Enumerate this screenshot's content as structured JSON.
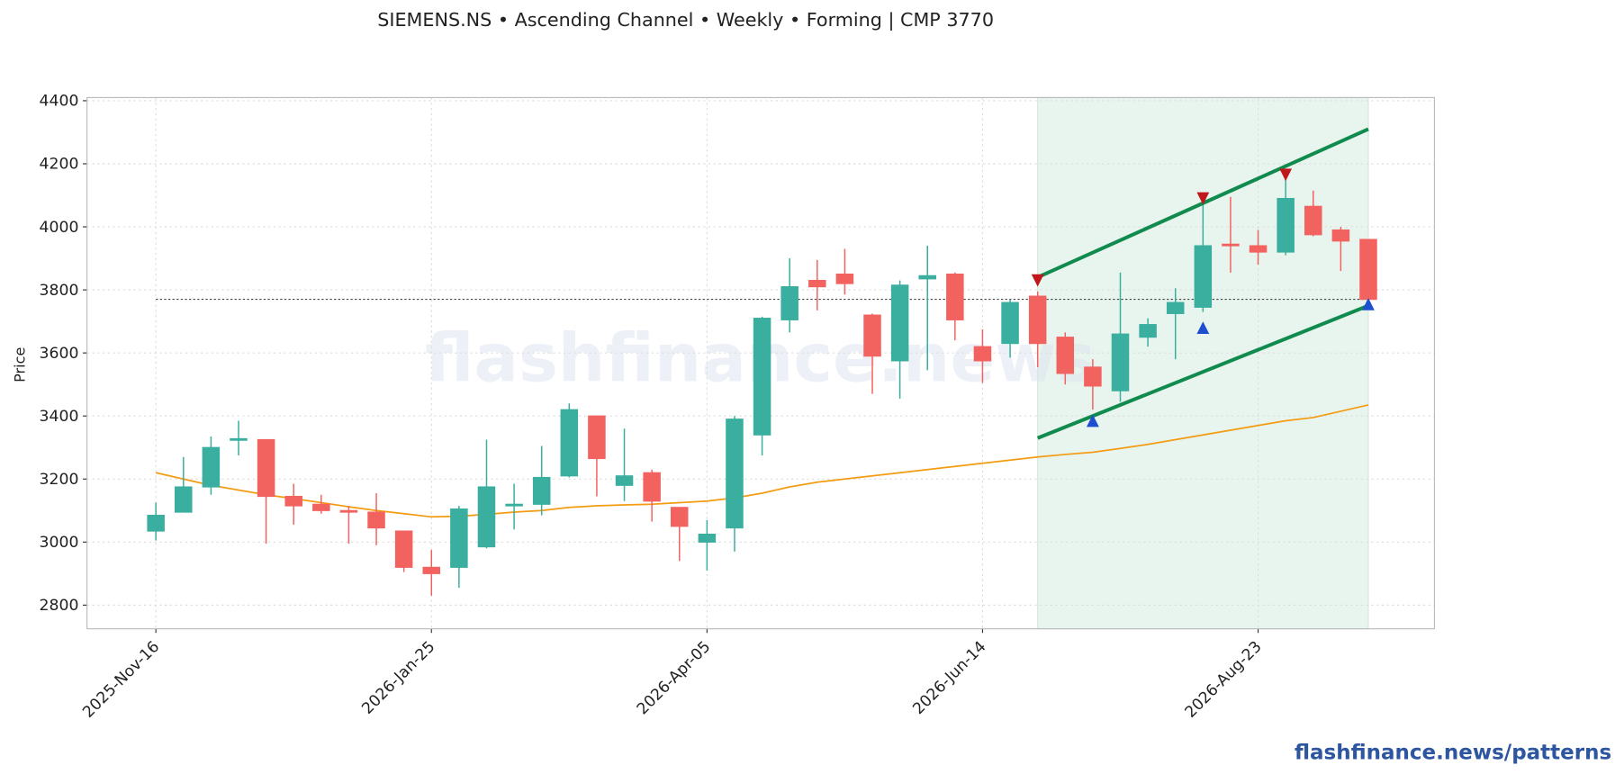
{
  "chart_data": {
    "type": "candlestick",
    "title": "SIEMENS.NS  •  Ascending Channel  •  Weekly  •  Forming  |  CMP 3770",
    "ylabel": "Price",
    "watermark": "flashfinance.news",
    "footer": "flashfinance.news/patterns",
    "categories": [
      "2025-Nov-16",
      null,
      null,
      null,
      null,
      null,
      null,
      null,
      null,
      null,
      "2026-Jan-25",
      null,
      null,
      null,
      null,
      null,
      null,
      null,
      null,
      null,
      "2026-Apr-05",
      null,
      null,
      null,
      null,
      null,
      null,
      null,
      null,
      null,
      "2026-Jun-14",
      null,
      null,
      null,
      null,
      null,
      null,
      null,
      null,
      null,
      "2026-Aug-23",
      null,
      null,
      null,
      null
    ],
    "open": [
      3035,
      3095,
      3175,
      3325,
      3325,
      3145,
      3120,
      3100,
      3095,
      3035,
      2920,
      2920,
      2985,
      3115,
      3120,
      3210,
      3400,
      3180,
      3220,
      3110,
      3000,
      3045,
      3340,
      3705,
      3830,
      3850,
      3720,
      3575,
      3835,
      3850,
      3620,
      3630,
      3780,
      3650,
      3555,
      3480,
      3650,
      3725,
      3745,
      3945,
      3940,
      3920,
      4065,
      3990,
      3960
    ],
    "high": [
      3125,
      3270,
      3335,
      3385,
      3325,
      3185,
      3150,
      3115,
      3155,
      3035,
      2975,
      3115,
      3325,
      3185,
      3305,
      3440,
      3400,
      3360,
      3230,
      3110,
      3070,
      3400,
      3715,
      3900,
      3895,
      3930,
      3725,
      3830,
      3940,
      3855,
      3675,
      3770,
      3795,
      3665,
      3580,
      3855,
      3710,
      3805,
      4080,
      4095,
      3990,
      4160,
      4115,
      4000,
      3960
    ],
    "low": [
      3005,
      3095,
      3150,
      3275,
      2995,
      3055,
      3090,
      2995,
      2990,
      2905,
      2830,
      2855,
      2980,
      3040,
      3085,
      3205,
      3145,
      3130,
      3065,
      2940,
      2910,
      2970,
      3275,
      3665,
      3735,
      3785,
      3470,
      3455,
      3545,
      3640,
      3505,
      3585,
      3555,
      3500,
      3420,
      3445,
      3620,
      3580,
      3730,
      3855,
      3880,
      3910,
      3970,
      3860,
      3770
    ],
    "close": [
      3085,
      3175,
      3300,
      3328,
      3145,
      3115,
      3100,
      3095,
      3045,
      2920,
      2900,
      3105,
      3175,
      3120,
      3205,
      3420,
      3265,
      3210,
      3130,
      3050,
      3025,
      3390,
      3710,
      3810,
      3810,
      3820,
      3590,
      3815,
      3845,
      3705,
      3575,
      3760,
      3630,
      3535,
      3495,
      3660,
      3690,
      3760,
      3940,
      3940,
      3920,
      4090,
      3975,
      3955,
      3770
    ],
    "up_color": "#3aae9f",
    "down_color": "#f26360",
    "moving_average": {
      "color": "#f39c12",
      "values": [
        3220,
        3200,
        3180,
        3165,
        3150,
        3138,
        3125,
        3112,
        3100,
        3090,
        3080,
        3082,
        3088,
        3095,
        3100,
        3110,
        3115,
        3118,
        3120,
        3125,
        3130,
        3140,
        3155,
        3175,
        3190,
        3200,
        3210,
        3220,
        3230,
        3240,
        3250,
        3260,
        3270,
        3278,
        3285,
        3297,
        3310,
        3325,
        3340,
        3355,
        3370,
        3385,
        3395,
        3415,
        3435
      ]
    },
    "cmp_line": {
      "value": 3770,
      "color": "#444"
    },
    "channel": {
      "x": [
        32,
        44
      ],
      "upper": [
        3840,
        4310
      ],
      "lower": [
        3330,
        3750
      ],
      "color": "#118a4e",
      "shade": "#e8f5ee"
    },
    "pivot_highs": {
      "x": [
        32,
        38,
        41
      ],
      "values": [
        3830,
        4090,
        4165
      ],
      "color": "#c0171b"
    },
    "pivot_lows": {
      "x": [
        34,
        38,
        44
      ],
      "values": [
        3385,
        3680,
        3755
      ],
      "color": "#1f4fd1"
    },
    "xlim": [
      -2.5,
      46.4
    ],
    "ylim": [
      2725,
      4410
    ],
    "yticks": [
      2800,
      3000,
      3200,
      3400,
      3600,
      3800,
      4000,
      4200,
      4400
    ],
    "grid": true
  }
}
